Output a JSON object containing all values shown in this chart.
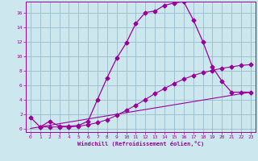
{
  "xlabel": "Windchill (Refroidissement éolien,°C)",
  "bg_color": "#cce8ee",
  "line_color": "#990099",
  "grid_color": "#99bbcc",
  "x_ticks": [
    0,
    1,
    2,
    3,
    4,
    5,
    6,
    7,
    8,
    9,
    10,
    11,
    12,
    13,
    14,
    15,
    16,
    17,
    18,
    19,
    20,
    21,
    22,
    23
  ],
  "y_ticks": [
    0,
    2,
    4,
    6,
    8,
    10,
    12,
    14,
    16
  ],
  "xlim": [
    -0.5,
    23.5
  ],
  "ylim": [
    -0.5,
    17.5
  ],
  "curve1_x": [
    0,
    1,
    2,
    3,
    4,
    5,
    6,
    7,
    8,
    9,
    10,
    11,
    12,
    13,
    14,
    15,
    16,
    17,
    18,
    19,
    20,
    21,
    22,
    23
  ],
  "curve1_y": [
    1.5,
    0.2,
    1.0,
    0.3,
    0.3,
    0.4,
    1.0,
    4.0,
    7.0,
    9.7,
    11.8,
    14.5,
    16.0,
    16.2,
    17.0,
    17.3,
    17.5,
    15.0,
    12.0,
    8.5,
    6.5,
    5.0,
    5.0,
    5.0
  ],
  "curve2_x": [
    1,
    2,
    3,
    4,
    5,
    6,
    7,
    8,
    9,
    10,
    11,
    12,
    13,
    14,
    15,
    16,
    17,
    18,
    19,
    20,
    21,
    22,
    23
  ],
  "curve2_y": [
    0.2,
    0.2,
    0.2,
    0.2,
    0.3,
    0.5,
    0.8,
    1.2,
    1.8,
    2.5,
    3.2,
    4.0,
    4.8,
    5.5,
    6.2,
    6.8,
    7.3,
    7.7,
    8.0,
    8.3,
    8.5,
    8.7,
    8.8
  ],
  "curve3_x": [
    0,
    23
  ],
  "curve3_y": [
    0,
    5.0
  ]
}
